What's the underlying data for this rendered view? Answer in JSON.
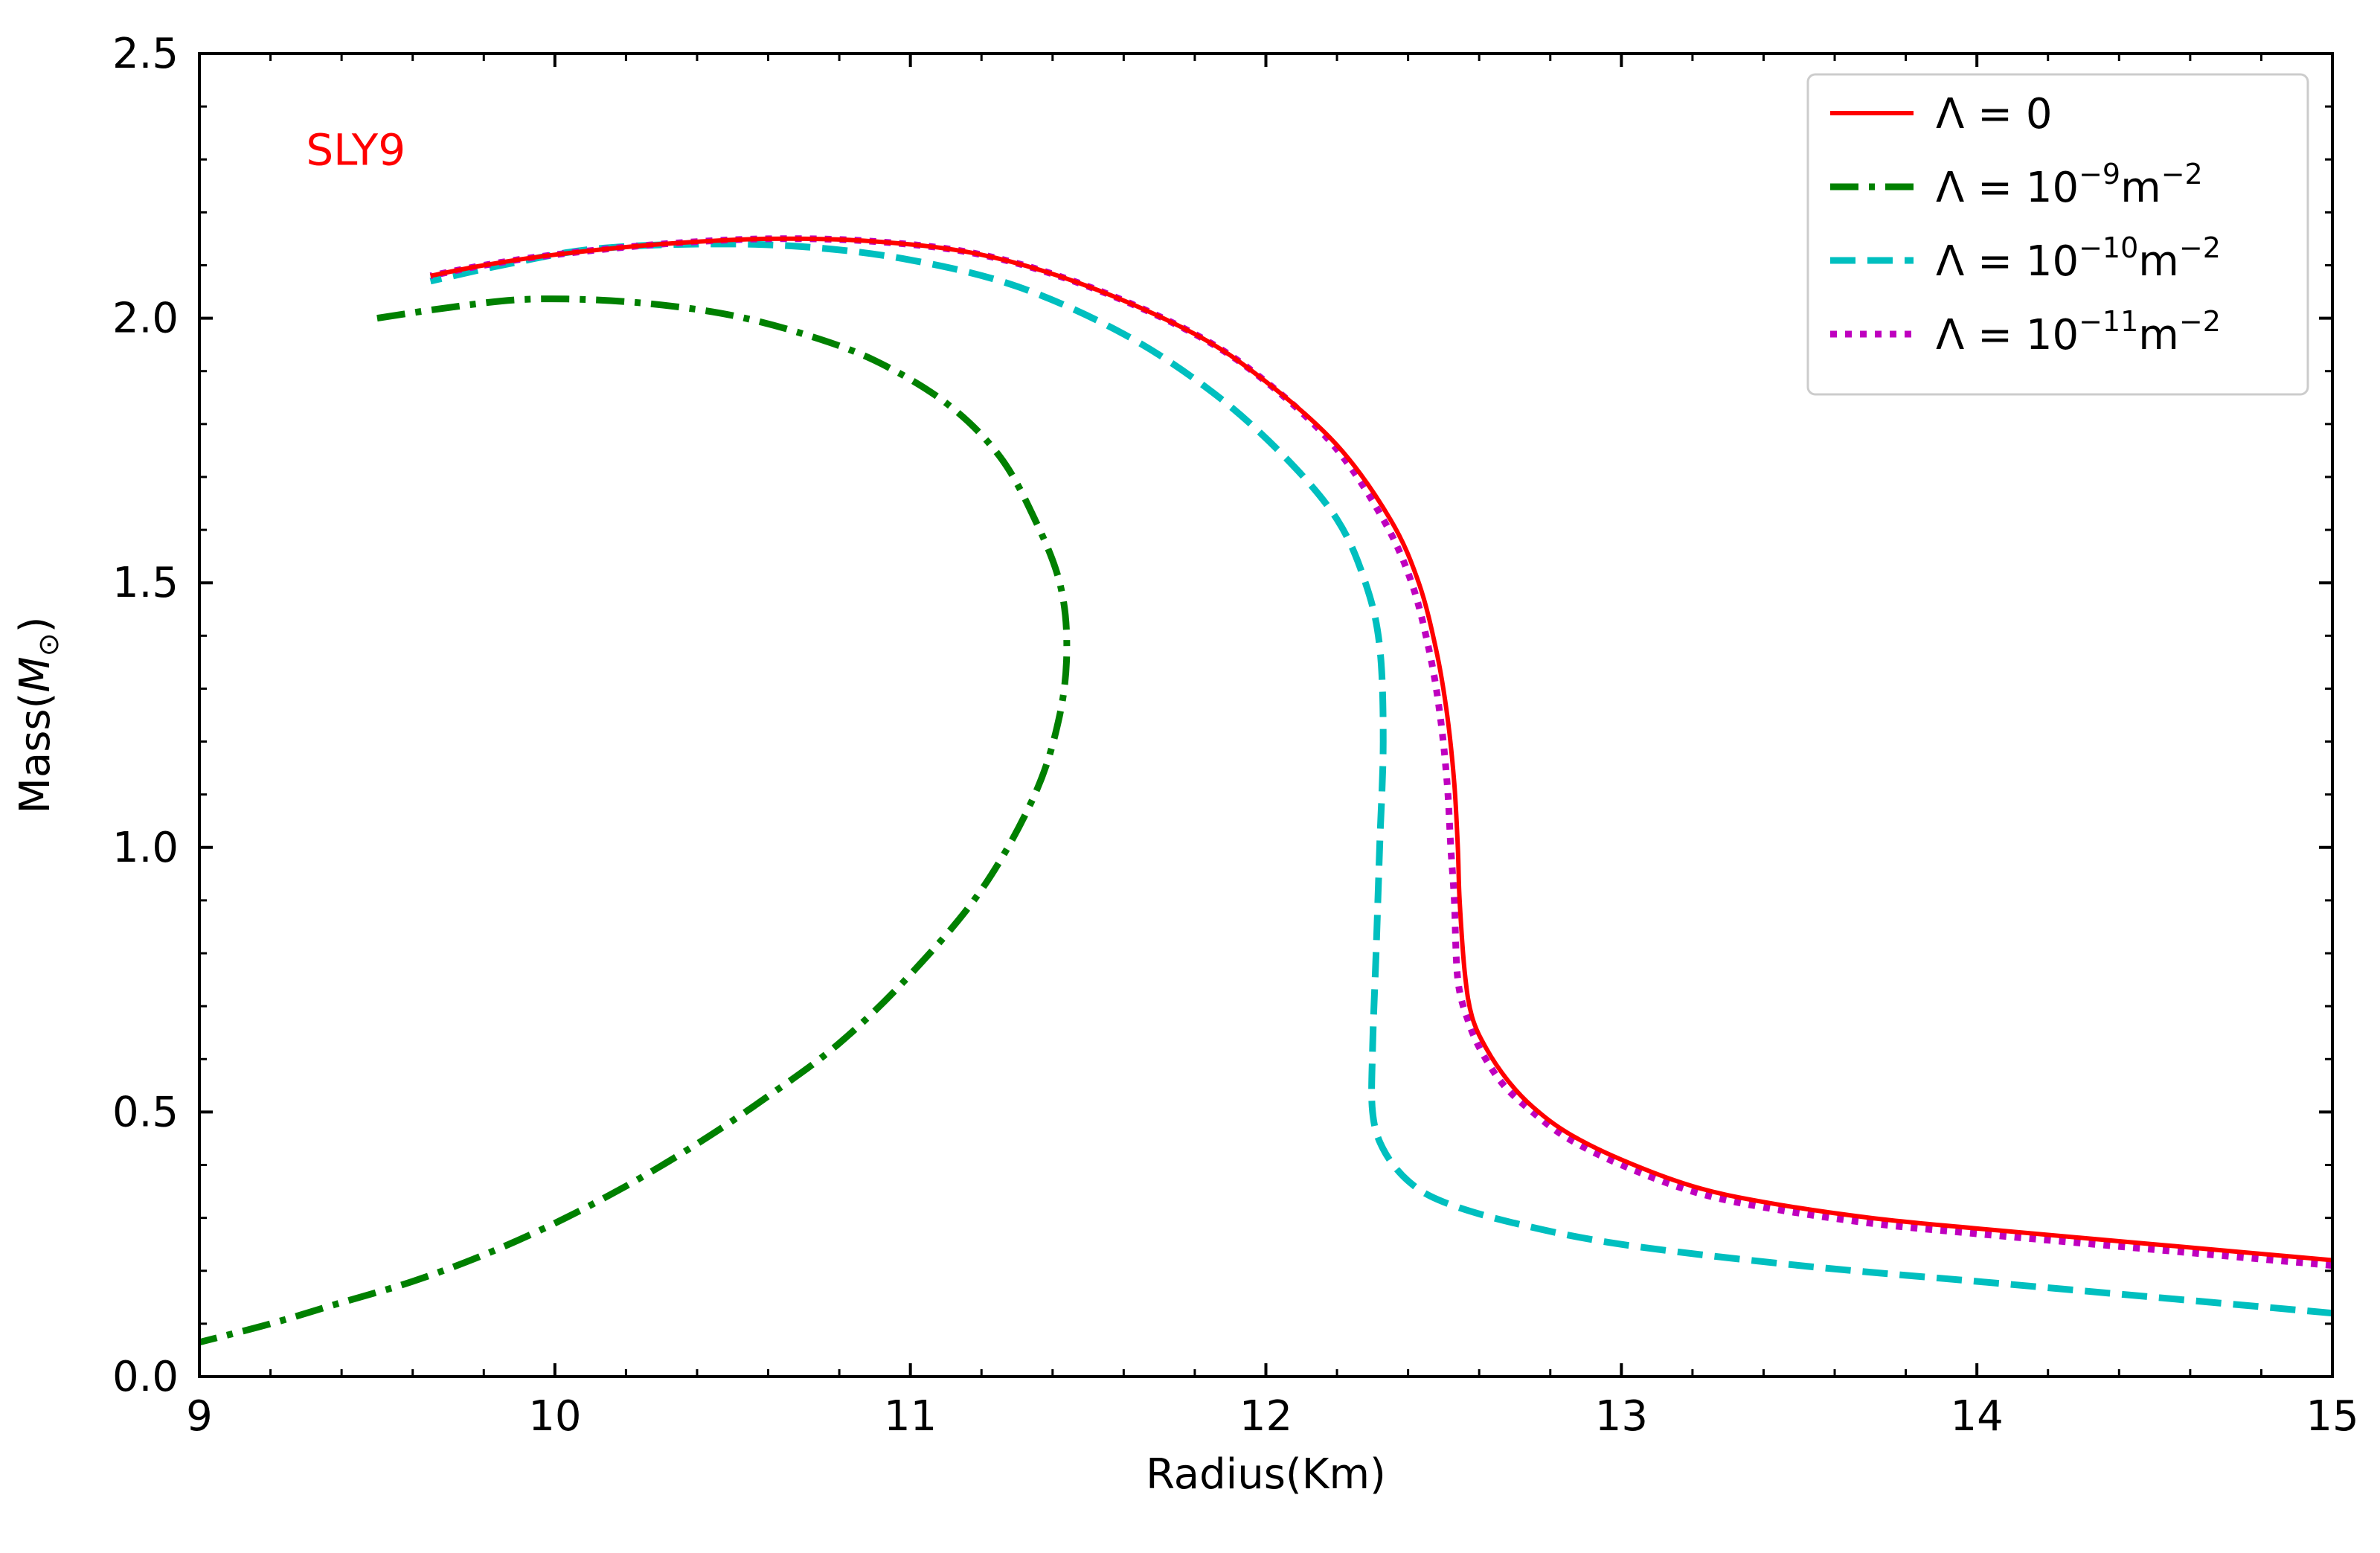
{
  "chart_data": {
    "type": "line",
    "annotation": "SLY9",
    "xlabel": "Radius(Km)",
    "ylabel_text": "Mass(",
    "ylabel_symbol": "M",
    "ylabel_sub": "⊙",
    "ylabel_close": ")",
    "xlim": [
      9,
      15
    ],
    "ylim": [
      0,
      2.5
    ],
    "xticks": [
      9,
      10,
      11,
      12,
      13,
      14,
      15
    ],
    "xtick_labels": [
      "9",
      "10",
      "11",
      "12",
      "13",
      "14",
      "15"
    ],
    "yticks": [
      0,
      0.5,
      1.0,
      1.5,
      2.0,
      2.5
    ],
    "ytick_labels": [
      "0.0",
      "0.5",
      "1.0",
      "1.5",
      "2.0",
      "2.5"
    ],
    "grid": false,
    "legend_position": "top-right",
    "series": [
      {
        "name": "Λ = 0",
        "legend_base": "Λ = 0",
        "legend_exp": "",
        "legend_unit": "",
        "color": "#ff0000",
        "style": "solid",
        "x": [
          15.0,
          14.5,
          14.0,
          13.7,
          13.4,
          13.2,
          13.0,
          12.85,
          12.75,
          12.68,
          12.62,
          12.58,
          12.56,
          12.545,
          12.54,
          12.53,
          12.51,
          12.48,
          12.43,
          12.35,
          12.2,
          12.0,
          11.8,
          11.5,
          11.2,
          10.9,
          10.6,
          10.3,
          10.0,
          9.8,
          9.65
        ],
        "y": [
          0.22,
          0.25,
          0.28,
          0.3,
          0.33,
          0.36,
          0.41,
          0.46,
          0.51,
          0.56,
          0.62,
          0.68,
          0.76,
          0.9,
          1.0,
          1.12,
          1.25,
          1.37,
          1.5,
          1.62,
          1.76,
          1.88,
          1.97,
          2.06,
          2.12,
          2.145,
          2.15,
          2.14,
          2.12,
          2.1,
          2.08
        ]
      },
      {
        "name": "Λ = 10⁻⁹m⁻²",
        "legend_base": "Λ = 10",
        "legend_exp": "−9",
        "legend_unit": "m",
        "color": "#008000",
        "style": "dashdot",
        "x": [
          9.5,
          9.7,
          9.9,
          10.1,
          10.3,
          10.5,
          10.7,
          10.9,
          11.1,
          11.25,
          11.35,
          11.42,
          11.44,
          11.42,
          11.35,
          11.2,
          11.0,
          10.8,
          10.6,
          10.4,
          10.2,
          10.0,
          9.8,
          9.6,
          9.4,
          9.2,
          9.0
        ],
        "y": [
          2.0,
          2.02,
          2.035,
          2.035,
          2.025,
          2.005,
          1.97,
          1.92,
          1.84,
          1.74,
          1.62,
          1.5,
          1.38,
          1.25,
          1.1,
          0.92,
          0.76,
          0.63,
          0.53,
          0.44,
          0.36,
          0.29,
          0.23,
          0.18,
          0.14,
          0.1,
          0.065
        ]
      },
      {
        "name": "Λ = 10⁻¹⁰m⁻²",
        "legend_base": "Λ = 10",
        "legend_exp": "−10",
        "legend_unit": "m",
        "color": "#00bfbf",
        "style": "dashed",
        "x": [
          15.0,
          14.5,
          14.0,
          13.5,
          13.0,
          12.7,
          12.5,
          12.4,
          12.33,
          12.3,
          12.3,
          12.31,
          12.32,
          12.33,
          12.32,
          12.28,
          12.2,
          12.05,
          11.85,
          11.6,
          11.3,
          11.0,
          10.7,
          10.4,
          10.1,
          9.85,
          9.65
        ],
        "y": [
          0.12,
          0.15,
          0.18,
          0.21,
          0.25,
          0.29,
          0.33,
          0.37,
          0.43,
          0.5,
          0.62,
          0.8,
          1.0,
          1.2,
          1.38,
          1.5,
          1.62,
          1.74,
          1.86,
          1.97,
          2.06,
          2.11,
          2.135,
          2.14,
          2.13,
          2.1,
          2.07
        ]
      },
      {
        "name": "Λ = 10⁻¹¹m⁻²",
        "legend_base": "Λ = 10",
        "legend_exp": "−11",
        "legend_unit": "m",
        "color": "#bf00bf",
        "style": "dotted",
        "x": [
          15.0,
          14.5,
          14.0,
          13.7,
          13.4,
          13.2,
          13.0,
          12.85,
          12.75,
          12.67,
          12.61,
          12.57,
          12.54,
          12.53,
          12.52,
          12.51,
          12.49,
          12.46,
          12.41,
          12.33,
          12.19,
          12.0,
          11.8,
          11.5,
          11.2,
          10.9,
          10.6,
          10.3,
          10.0,
          9.8,
          9.65
        ],
        "y": [
          0.21,
          0.24,
          0.27,
          0.29,
          0.32,
          0.35,
          0.4,
          0.45,
          0.5,
          0.55,
          0.61,
          0.67,
          0.75,
          0.9,
          1.0,
          1.12,
          1.25,
          1.37,
          1.5,
          1.62,
          1.76,
          1.88,
          1.97,
          2.06,
          2.12,
          2.145,
          2.15,
          2.14,
          2.12,
          2.1,
          2.08
        ]
      }
    ]
  }
}
